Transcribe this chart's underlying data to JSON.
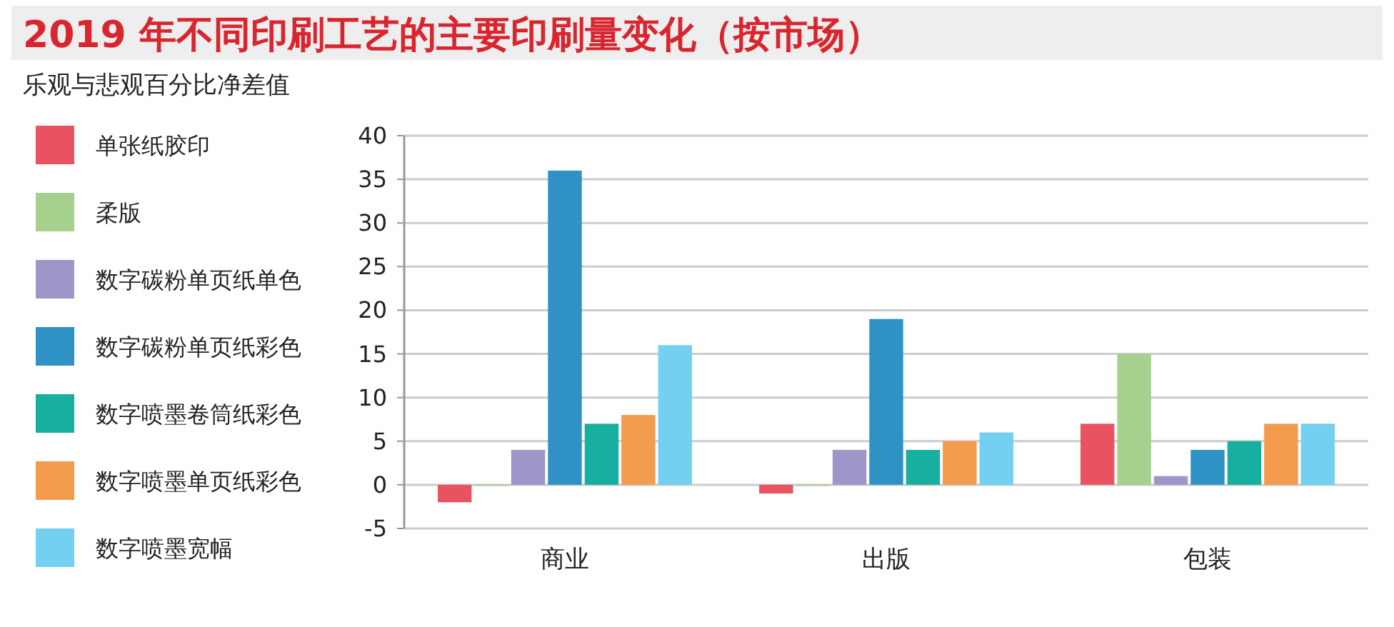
{
  "chart_data": {
    "type": "bar",
    "title": "2019 年不同印刷工艺的主要印刷量变化（按市场）",
    "subtitle": "乐观与悲观百分比净差值",
    "categories": [
      "商业",
      "出版",
      "包装"
    ],
    "series": [
      {
        "name": "单张纸胶印",
        "color": "#e8535f",
        "values": [
          -2,
          -1,
          7
        ]
      },
      {
        "name": "柔版",
        "color": "#a6d08e",
        "values": [
          0,
          0,
          15
        ]
      },
      {
        "name": "数字碳粉单页纸单色",
        "color": "#9d96c8",
        "values": [
          4,
          4,
          1
        ]
      },
      {
        "name": "数字碳粉单页纸彩色",
        "color": "#2e93c4",
        "values": [
          36,
          19,
          4
        ]
      },
      {
        "name": "数字喷墨卷筒纸彩色",
        "color": "#17b0a0",
        "values": [
          7,
          4,
          5
        ]
      },
      {
        "name": "数字喷墨单页纸彩色",
        "color": "#f39b4c",
        "values": [
          8,
          5,
          7
        ]
      },
      {
        "name": "数字喷墨宽幅",
        "color": "#74d0f1",
        "values": [
          16,
          6,
          7
        ]
      }
    ],
    "ylim": [
      -5,
      40
    ],
    "yticks": [
      -5,
      0,
      5,
      10,
      15,
      20,
      25,
      30,
      35,
      40
    ],
    "grid": "y",
    "legend": "left"
  }
}
